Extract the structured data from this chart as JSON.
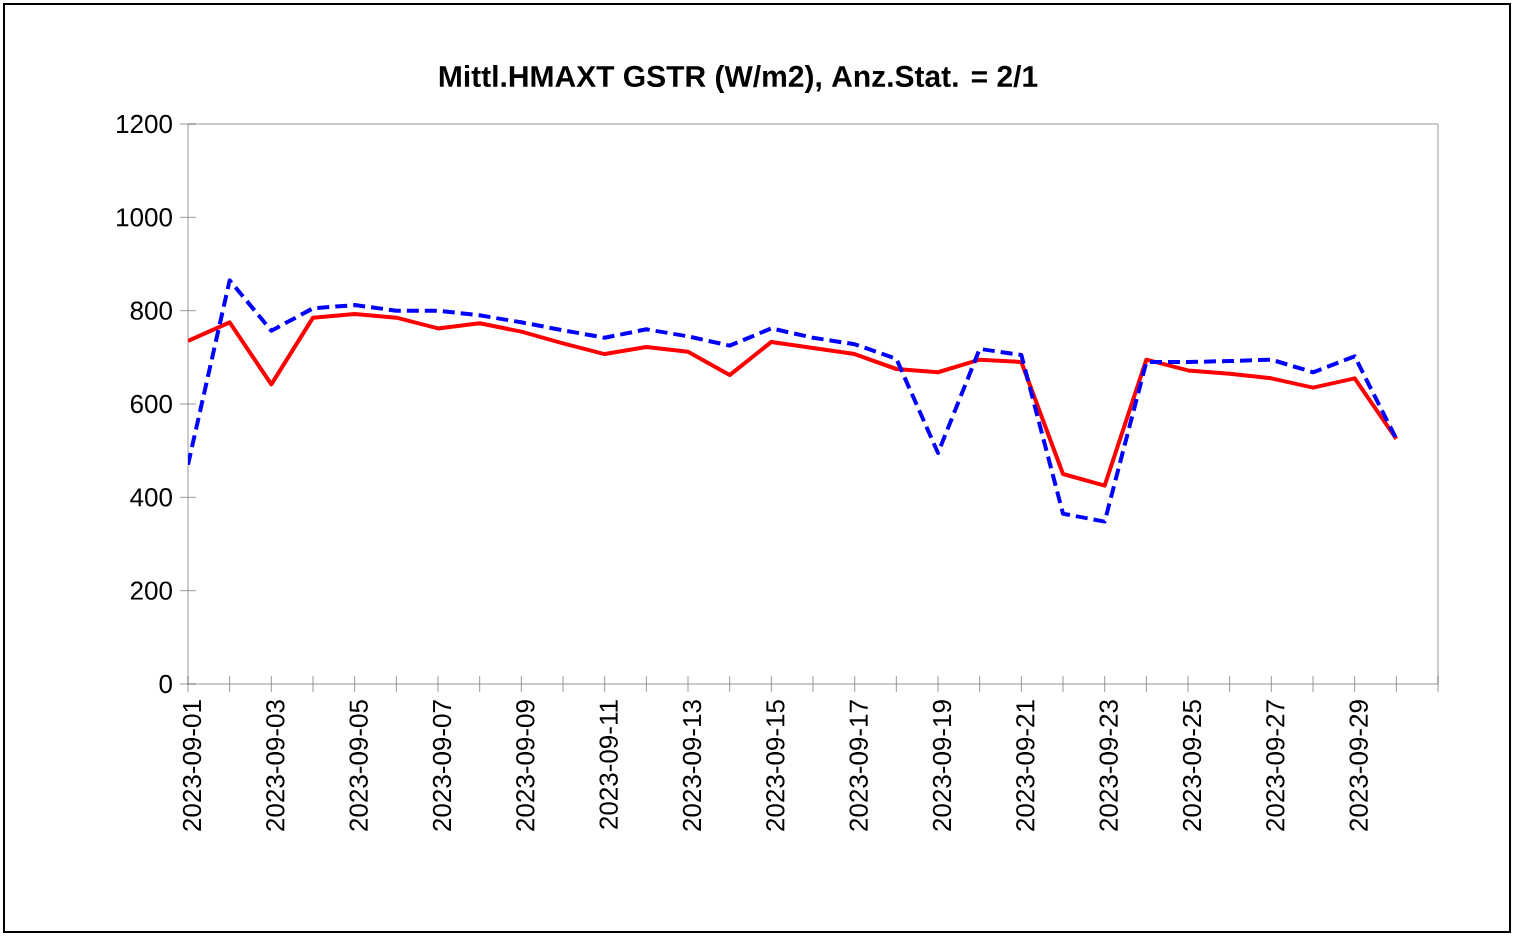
{
  "chart_data": {
    "type": "line",
    "title": "Mittl.HMAXT GSTR (W/m2), Anz.Stat. = 2/1",
    "categories": [
      "2023-09-01",
      null,
      "2023-09-03",
      null,
      "2023-09-05",
      null,
      "2023-09-07",
      null,
      "2023-09-09",
      null,
      "2023-09-11",
      null,
      "2023-09-13",
      null,
      "2023-09-15",
      null,
      "2023-09-17",
      null,
      "2023-09-19",
      null,
      "2023-09-21",
      null,
      "2023-09-23",
      null,
      "2023-09-25",
      null,
      "2023-09-27",
      null,
      "2023-09-29",
      null
    ],
    "series": [
      {
        "color": "#ff0000",
        "line_style": "solid",
        "values": [
          735,
          775,
          642,
          785,
          793,
          785,
          762,
          773,
          755,
          730,
          707,
          722,
          712,
          662,
          733,
          720,
          707,
          675,
          668,
          695,
          690,
          450,
          425,
          695,
          672,
          665,
          655,
          635,
          655,
          525
        ]
      },
      {
        "color": "#0000ff",
        "line_style": "dashed",
        "values": [
          470,
          865,
          757,
          805,
          812,
          800,
          800,
          790,
          775,
          758,
          742,
          760,
          745,
          725,
          762,
          742,
          728,
          697,
          495,
          718,
          705,
          365,
          348,
          690,
          690,
          692,
          695,
          668,
          702,
          525
        ]
      }
    ],
    "ylim": [
      0,
      1200
    ],
    "yticks": [
      0,
      200,
      400,
      600,
      800,
      1000,
      1200
    ],
    "grid": false,
    "marker": "none"
  }
}
